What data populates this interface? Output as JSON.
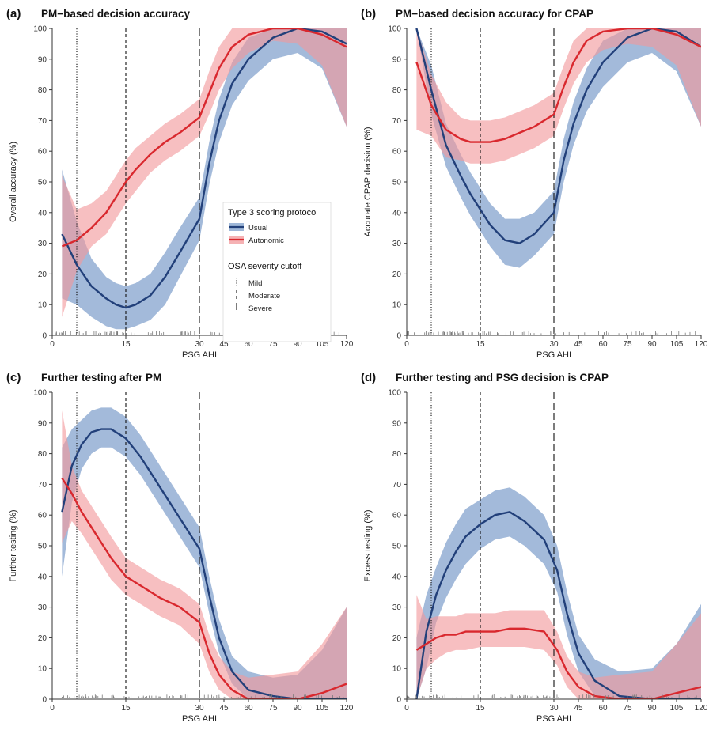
{
  "colors": {
    "usual_line": "#22407a",
    "usual_band": "#7fa0cc",
    "autonomic_line": "#d9282e",
    "autonomic_band": "#f2989b",
    "axis": "#333333",
    "rug": "#7a7a7a"
  },
  "legend": {
    "title": "Type 3 scoring protocol",
    "entries": [
      "Usual",
      "Autonomic"
    ],
    "cutoff_title": "OSA severity cutoff",
    "cutoffs": [
      "Mild",
      "Moderate",
      "Severe"
    ]
  },
  "chart_data": [
    {
      "type": "line",
      "letter": "(a)",
      "title": "PM−based decision accuracy",
      "xlabel": "PSG AHI",
      "ylabel": "Overall accuracy (%)",
      "x_ticks": [
        "0",
        "15",
        "30",
        "45",
        "60",
        "75",
        "90",
        "105",
        "120"
      ],
      "ylim": [
        0,
        100
      ],
      "y_ticks": [
        "0",
        "10",
        "20",
        "30",
        "40",
        "50",
        "60",
        "70",
        "80",
        "90",
        "100"
      ],
      "cutoff_lines": [
        5,
        15,
        30
      ],
      "legend_position": "center",
      "series": [
        {
          "name": "Usual",
          "x": [
            2,
            5,
            8,
            11,
            13,
            15,
            17,
            20,
            23,
            26,
            30,
            36,
            42,
            50,
            60,
            75,
            90,
            105,
            120
          ],
          "y": [
            33,
            23,
            16,
            12,
            10,
            9,
            10,
            13,
            19,
            27,
            38,
            56,
            70,
            82,
            90,
            97,
            100,
            99,
            95
          ],
          "lower": [
            12,
            10,
            6,
            3,
            2,
            2,
            3,
            5,
            10,
            19,
            31,
            49,
            63,
            75,
            83,
            90,
            92,
            87,
            68
          ],
          "upper": [
            54,
            37,
            25,
            19,
            17,
            16,
            17,
            20,
            27,
            35,
            45,
            63,
            77,
            89,
            97,
            100,
            100,
            100,
            100
          ]
        },
        {
          "name": "Autonomic",
          "x": [
            2,
            5,
            8,
            11,
            13,
            15,
            17,
            20,
            23,
            26,
            30,
            36,
            42,
            50,
            60,
            75,
            90,
            105,
            120
          ],
          "y": [
            29,
            31,
            35,
            40,
            45,
            50,
            54,
            59,
            63,
            66,
            71,
            79,
            87,
            94,
            98,
            100,
            100,
            98,
            94
          ],
          "lower": [
            6,
            21,
            29,
            33,
            38,
            43,
            47,
            53,
            57,
            60,
            65,
            72,
            80,
            87,
            92,
            96,
            95,
            88,
            68
          ],
          "upper": [
            52,
            41,
            43,
            47,
            52,
            57,
            61,
            65,
            69,
            72,
            77,
            86,
            94,
            100,
            100,
            100,
            100,
            100,
            100
          ]
        }
      ]
    },
    {
      "type": "line",
      "letter": "(b)",
      "title": "PM−based decision accuracy for CPAP",
      "xlabel": "PSG AHI",
      "ylabel": "Accurate CPAP decision (%)",
      "x_ticks": [
        "0",
        "15",
        "30",
        "45",
        "60",
        "75",
        "90",
        "105",
        "120"
      ],
      "ylim": [
        0,
        100
      ],
      "y_ticks": [
        "0",
        "10",
        "20",
        "30",
        "40",
        "50",
        "60",
        "70",
        "80",
        "90",
        "100"
      ],
      "cutoff_lines": [
        5,
        15,
        30
      ],
      "series": [
        {
          "name": "Usual",
          "x": [
            2,
            5,
            8,
            11,
            13,
            15,
            17,
            20,
            23,
            26,
            30,
            36,
            42,
            50,
            60,
            75,
            90,
            105,
            120
          ],
          "y": [
            100,
            80,
            62,
            52,
            46,
            41,
            36,
            31,
            30,
            33,
            40,
            57,
            69,
            80,
            89,
            97,
            100,
            99,
            94
          ],
          "lower": [
            100,
            72,
            55,
            45,
            39,
            34,
            29,
            23,
            22,
            26,
            33,
            50,
            62,
            73,
            81,
            89,
            92,
            86,
            68
          ],
          "upper": [
            100,
            88,
            69,
            59,
            53,
            48,
            43,
            38,
            38,
            40,
            47,
            64,
            76,
            87,
            96,
            100,
            100,
            100,
            100
          ]
        },
        {
          "name": "Autonomic",
          "x": [
            2,
            5,
            8,
            11,
            13,
            15,
            17,
            20,
            23,
            26,
            30,
            36,
            42,
            50,
            60,
            75,
            90,
            105,
            120
          ],
          "y": [
            89,
            75,
            67,
            64,
            63,
            63,
            63,
            64,
            66,
            68,
            72,
            81,
            89,
            96,
            99,
            100,
            100,
            98,
            94
          ],
          "lower": [
            67,
            65,
            58,
            57,
            56,
            56,
            56,
            57,
            59,
            61,
            65,
            74,
            82,
            89,
            93,
            95,
            94,
            88,
            68
          ],
          "upper": [
            100,
            85,
            76,
            71,
            70,
            70,
            70,
            71,
            73,
            75,
            79,
            88,
            96,
            100,
            100,
            100,
            100,
            100,
            100
          ]
        }
      ]
    },
    {
      "type": "line",
      "letter": "(c)",
      "title": "Further testing after PM",
      "xlabel": "PSG AHI",
      "ylabel": "Further testing (%)",
      "x_ticks": [
        "0",
        "15",
        "30",
        "45",
        "60",
        "75",
        "90",
        "105",
        "120"
      ],
      "ylim": [
        0,
        100
      ],
      "y_ticks": [
        "0",
        "10",
        "20",
        "30",
        "40",
        "50",
        "60",
        "70",
        "80",
        "90",
        "100"
      ],
      "cutoff_lines": [
        5,
        15,
        30
      ],
      "series": [
        {
          "name": "Usual",
          "x": [
            2,
            4,
            6,
            8,
            10,
            12,
            15,
            18,
            22,
            26,
            30,
            36,
            42,
            50,
            60,
            75,
            90,
            105,
            120
          ],
          "y": [
            61,
            76,
            83,
            87,
            88,
            88,
            85,
            79,
            69,
            59,
            49,
            34,
            20,
            9,
            3,
            1,
            0,
            0,
            0
          ],
          "lower": [
            40,
            64,
            75,
            80,
            82,
            82,
            79,
            73,
            63,
            53,
            43,
            28,
            15,
            5,
            0,
            0,
            0,
            0,
            0
          ],
          "upper": [
            82,
            88,
            91,
            94,
            95,
            95,
            92,
            86,
            76,
            66,
            56,
            40,
            26,
            14,
            9,
            7,
            8,
            16,
            30
          ]
        },
        {
          "name": "Autonomic",
          "x": [
            2,
            4,
            6,
            8,
            10,
            12,
            15,
            18,
            22,
            26,
            30,
            36,
            42,
            50,
            60,
            75,
            90,
            105,
            120
          ],
          "y": [
            72,
            67,
            61,
            56,
            51,
            46,
            40,
            37,
            33,
            30,
            25,
            15,
            8,
            3,
            0,
            0,
            0,
            2,
            5
          ],
          "lower": [
            51,
            58,
            54,
            49,
            44,
            39,
            34,
            31,
            27,
            24,
            18,
            9,
            3,
            0,
            0,
            0,
            0,
            0,
            0
          ],
          "upper": [
            94,
            76,
            68,
            63,
            58,
            53,
            46,
            43,
            39,
            36,
            31,
            21,
            14,
            9,
            7,
            8,
            9,
            18,
            30
          ]
        }
      ]
    },
    {
      "type": "line",
      "letter": "(d)",
      "title": "Further testing and PSG decision is CPAP",
      "xlabel": "PSG AHI",
      "ylabel": "Excess testing (%)",
      "x_ticks": [
        "0",
        "15",
        "30",
        "45",
        "60",
        "75",
        "90",
        "105",
        "120"
      ],
      "ylim": [
        0,
        100
      ],
      "y_ticks": [
        "0",
        "10",
        "20",
        "30",
        "40",
        "50",
        "60",
        "70",
        "80",
        "90",
        "100"
      ],
      "cutoff_lines": [
        5,
        15,
        30
      ],
      "series": [
        {
          "name": "Usual",
          "x": [
            2,
            4,
            6,
            8,
            10,
            12,
            15,
            18,
            21,
            24,
            28,
            32,
            38,
            45,
            55,
            70,
            90,
            105,
            120
          ],
          "y": [
            0,
            22,
            34,
            42,
            48,
            53,
            57,
            60,
            61,
            58,
            52,
            42,
            28,
            15,
            6,
            1,
            0,
            0,
            0
          ],
          "lower": [
            0,
            10,
            25,
            33,
            39,
            44,
            49,
            52,
            53,
            50,
            44,
            35,
            21,
            9,
            1,
            0,
            0,
            0,
            0
          ],
          "upper": [
            20,
            34,
            43,
            51,
            57,
            62,
            65,
            68,
            69,
            66,
            60,
            50,
            35,
            21,
            13,
            9,
            10,
            18,
            31
          ]
        },
        {
          "name": "Autonomic",
          "x": [
            2,
            4,
            6,
            8,
            10,
            12,
            15,
            18,
            21,
            24,
            28,
            32,
            38,
            45,
            55,
            70,
            90,
            105,
            120
          ],
          "y": [
            16,
            18,
            20,
            21,
            21,
            22,
            22,
            22,
            23,
            23,
            22,
            16,
            9,
            4,
            1,
            0,
            0,
            2,
            4
          ],
          "lower": [
            0,
            10,
            13,
            15,
            16,
            16,
            17,
            17,
            17,
            17,
            16,
            11,
            4,
            0,
            0,
            0,
            0,
            0,
            0
          ],
          "upper": [
            34,
            26,
            27,
            27,
            27,
            28,
            28,
            28,
            29,
            29,
            29,
            22,
            14,
            9,
            7,
            8,
            9,
            18,
            28
          ]
        }
      ]
    }
  ]
}
